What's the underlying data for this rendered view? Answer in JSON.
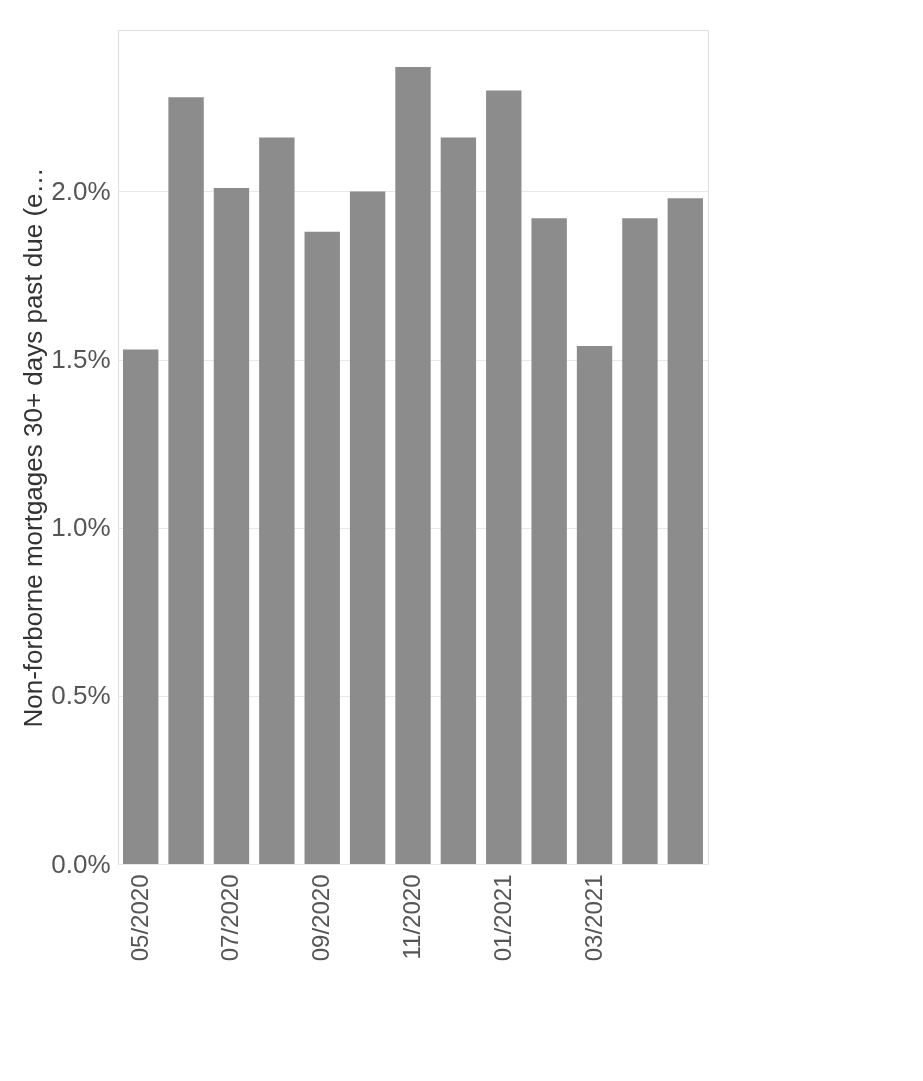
{
  "chart_data": {
    "type": "bar",
    "ylabel": "Non-forborne mortgages 30+ days past due (e…",
    "categories": [
      "05/2020",
      null,
      "07/2020",
      null,
      "09/2020",
      null,
      "11/2020",
      null,
      "01/2021",
      null,
      "03/2021",
      null,
      null
    ],
    "values": [
      1.53,
      2.28,
      2.01,
      2.16,
      1.88,
      2.0,
      2.37,
      2.16,
      2.3,
      1.92,
      1.54,
      1.92,
      1.98
    ],
    "color": "#8c8c8c",
    "ylim": [
      0,
      2.48
    ],
    "yticks": [
      {
        "value": 0,
        "label": "0.0%"
      },
      {
        "value": 0.5,
        "label": "0.5%"
      },
      {
        "value": 1,
        "label": "1.0%"
      },
      {
        "value": 1.5,
        "label": "1.5%"
      },
      {
        "value": 2,
        "label": "2.0%"
      }
    ],
    "grid": "y"
  }
}
